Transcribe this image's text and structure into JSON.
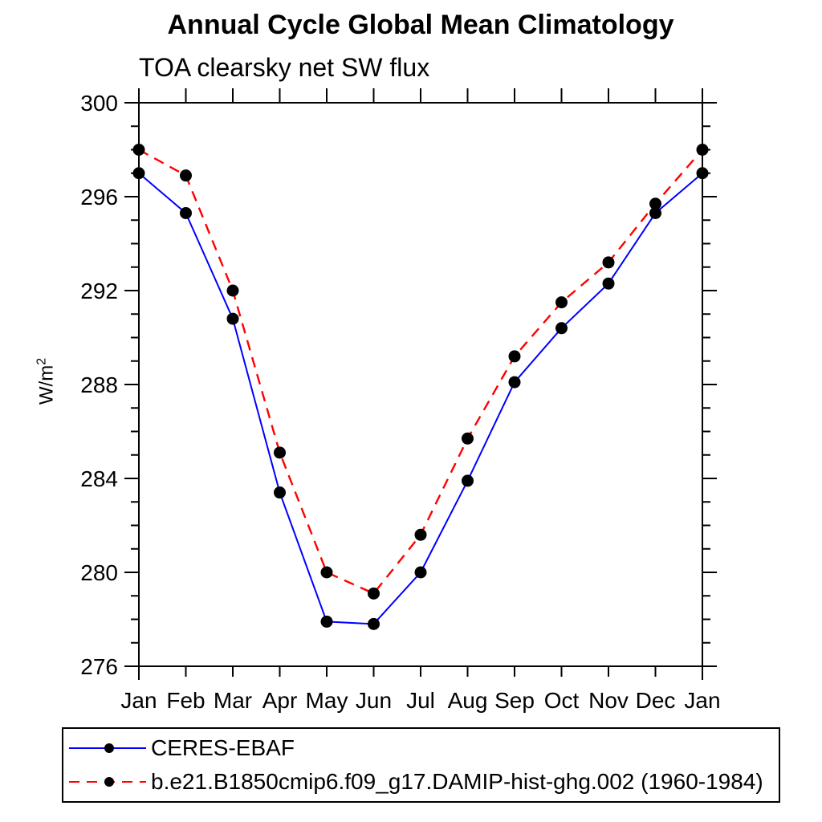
{
  "chart_data": {
    "type": "line",
    "title": "Annual Cycle Global Mean Climatology",
    "subtitle": "TOA clearsky net SW flux",
    "xlabel": "",
    "ylabel": {
      "base": "W/m",
      "sup": "2"
    },
    "categories": [
      "Jan",
      "Feb",
      "Mar",
      "Apr",
      "May",
      "Jun",
      "Jul",
      "Aug",
      "Sep",
      "Oct",
      "Nov",
      "Dec",
      "Jan"
    ],
    "ylim": [
      276,
      300
    ],
    "ytick_major_interval": 4,
    "ytick_minor_interval": 1,
    "ytick_major_labels": [
      "276",
      "280",
      "284",
      "288",
      "292",
      "296",
      "300"
    ],
    "grid": false,
    "legend_position": "bottom",
    "marker": "filled-circle",
    "marker_color": "#000000",
    "axis_color": "#000000",
    "series": [
      {
        "name": "CERES-EBAF",
        "color": "#0000FF",
        "line_style": "solid",
        "values": [
          297.0,
          295.3,
          290.8,
          283.4,
          277.9,
          277.8,
          280.0,
          283.9,
          288.1,
          290.4,
          292.3,
          295.3,
          297.0
        ]
      },
      {
        "name": "b.e21.B1850cmip6.f09_g17.DAMIP-hist-ghg.002 (1960-1984)",
        "color": "#FF0000",
        "line_style": "dashed",
        "values": [
          298.0,
          296.9,
          292.0,
          285.1,
          280.0,
          279.1,
          281.6,
          285.7,
          289.2,
          291.5,
          293.2,
          295.7,
          298.0
        ]
      }
    ]
  }
}
